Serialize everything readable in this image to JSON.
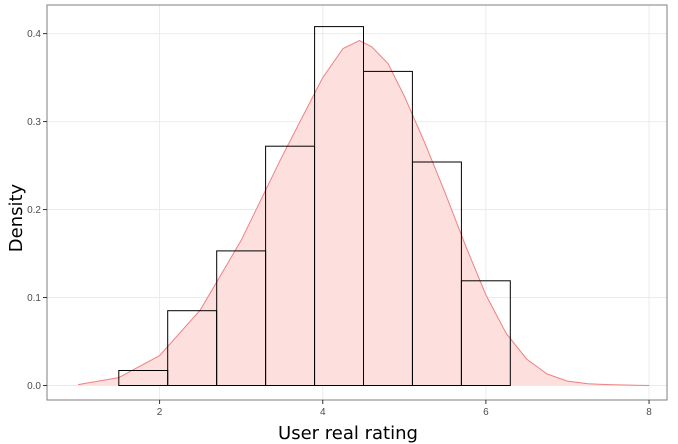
{
  "chart_data": {
    "type": "histogram",
    "xlabel": "User real rating",
    "ylabel": "Density",
    "xlim": [
      0.62,
      8.22
    ],
    "ylim": [
      -0.0165,
      0.4325
    ],
    "x_ticks": [
      2,
      4,
      6,
      8
    ],
    "y_ticks": [
      0.0,
      0.1,
      0.2,
      0.3,
      0.4
    ],
    "x_tick_labels": [
      "2",
      "4",
      "6",
      "8"
    ],
    "y_tick_labels": [
      "0.0",
      "0.1",
      "0.2",
      "0.3",
      "0.4"
    ],
    "grid": true,
    "histogram": {
      "bins": [
        {
          "x0": 1.5,
          "x1": 2.1,
          "density": 0.017
        },
        {
          "x0": 2.1,
          "x1": 2.7,
          "density": 0.085
        },
        {
          "x0": 2.7,
          "x1": 3.3,
          "density": 0.153
        },
        {
          "x0": 3.3,
          "x1": 3.9,
          "density": 0.272
        },
        {
          "x0": 3.9,
          "x1": 4.5,
          "density": 0.408
        },
        {
          "x0": 4.5,
          "x1": 5.1,
          "density": 0.357
        },
        {
          "x0": 5.1,
          "x1": 5.7,
          "density": 0.254
        },
        {
          "x0": 5.7,
          "x1": 6.3,
          "density": 0.119
        }
      ]
    },
    "density_curve": {
      "x": [
        1.0,
        1.5,
        2.0,
        2.5,
        3.0,
        3.5,
        4.0,
        4.25,
        4.45,
        4.6,
        4.8,
        5.0,
        5.25,
        5.5,
        5.75,
        6.0,
        6.25,
        6.5,
        6.75,
        7.0,
        7.25,
        7.5,
        8.0
      ],
      "y": [
        0.001,
        0.009,
        0.034,
        0.086,
        0.165,
        0.26,
        0.35,
        0.383,
        0.392,
        0.385,
        0.366,
        0.329,
        0.276,
        0.219,
        0.159,
        0.103,
        0.059,
        0.03,
        0.013,
        0.005,
        0.002,
        0.001,
        0.0
      ]
    },
    "colors": {
      "fill": "#fde0dd",
      "curve": "#f08080",
      "bar_outline": "#000000",
      "grid": "#ebebeb",
      "panel_border": "#7f7f7f"
    }
  }
}
